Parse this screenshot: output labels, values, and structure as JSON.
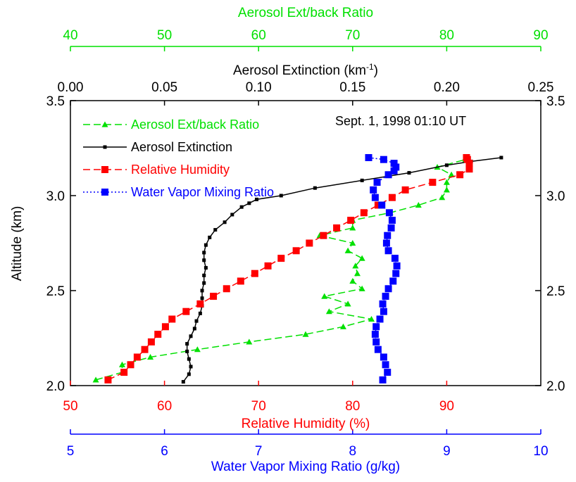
{
  "chart_data": {
    "type": "line",
    "annotation": "Sept. 1, 1998 01:10 UT",
    "y_axis": {
      "label": "Altitude (km)",
      "range": [
        2.0,
        3.5
      ],
      "ticks": [
        2.0,
        2.5,
        3.0,
        3.5
      ],
      "tick_labels": [
        "2.0",
        "2.5",
        "3.0",
        "3.5"
      ]
    },
    "x_axes": {
      "ext_back": {
        "label": "Aerosol Ext/back Ratio",
        "range": [
          40,
          90
        ],
        "ticks": [
          40,
          50,
          60,
          70,
          80,
          90
        ],
        "tick_labels": [
          "40",
          "50",
          "60",
          "70",
          "80",
          "90"
        ],
        "color": "#00e000"
      },
      "extinction": {
        "label_main": "Aerosol Extinction (km",
        "label_sup": "-1",
        "label_end": ")",
        "range": [
          0,
          0.25
        ],
        "ticks": [
          0,
          0.05,
          0.1,
          0.15,
          0.2,
          0.25
        ],
        "tick_labels": [
          "0.00",
          "0.05",
          "0.10",
          "0.15",
          "0.20",
          "0.25"
        ],
        "color": "#000000"
      },
      "humidity": {
        "label": "Relative Humidity (%)",
        "range": [
          50,
          100
        ],
        "ticks": [
          50,
          60,
          70,
          80,
          90
        ],
        "tick_labels": [
          "50",
          "60",
          "70",
          "80",
          "90"
        ],
        "color": "#ff0000"
      },
      "mixing": {
        "label": "Water Vapor Mixing Ratio (g/kg)",
        "range": [
          5,
          10
        ],
        "ticks": [
          5,
          6,
          7,
          8,
          9,
          10
        ],
        "tick_labels": [
          "5",
          "6",
          "7",
          "8",
          "9",
          "10"
        ],
        "color": "#0000ff"
      }
    },
    "series": [
      {
        "name": "Aerosol Ext/back Ratio",
        "axis": "ext_back",
        "color": "#00e000",
        "marker": "triangle",
        "dash": "10,5",
        "x": [
          42.7,
          45.5,
          45.5,
          48.5,
          53.5,
          59.0,
          65.0,
          69.0,
          72.0,
          67.5,
          69.5,
          67.0,
          71.0,
          70.0,
          70.5,
          70.3,
          71.0,
          69.5,
          70.0,
          66.5,
          70.0,
          70.0,
          74.0,
          77.0,
          79.5,
          80.0,
          80.0,
          80.5,
          79.0,
          82.0,
          82.0
        ],
        "y": [
          2.03,
          2.07,
          2.11,
          2.15,
          2.19,
          2.23,
          2.27,
          2.31,
          2.35,
          2.39,
          2.43,
          2.47,
          2.51,
          2.55,
          2.59,
          2.63,
          2.67,
          2.71,
          2.75,
          2.79,
          2.83,
          2.87,
          2.91,
          2.95,
          2.99,
          3.03,
          3.07,
          3.11,
          3.15,
          3.19,
          3.2
        ]
      },
      {
        "name": "Aerosol Extinction",
        "axis": "extinction",
        "color": "#000000",
        "marker": "square-small",
        "dash": "",
        "x": [
          0.06,
          0.063,
          0.064,
          0.063,
          0.062,
          0.062,
          0.064,
          0.066,
          0.067,
          0.069,
          0.07,
          0.07,
          0.07,
          0.071,
          0.071,
          0.072,
          0.071,
          0.071,
          0.072,
          0.074,
          0.077,
          0.082,
          0.086,
          0.091,
          0.095,
          0.099,
          0.112,
          0.13,
          0.155,
          0.18,
          0.2,
          0.213,
          0.229
        ],
        "y": [
          2.02,
          2.06,
          2.1,
          2.14,
          2.18,
          2.22,
          2.26,
          2.3,
          2.34,
          2.38,
          2.42,
          2.46,
          2.5,
          2.54,
          2.58,
          2.62,
          2.66,
          2.7,
          2.74,
          2.78,
          2.82,
          2.86,
          2.9,
          2.94,
          2.96,
          2.98,
          3.0,
          3.04,
          3.08,
          3.12,
          3.16,
          3.18,
          3.2
        ]
      },
      {
        "name": "Relative Humidity",
        "axis": "humidity",
        "color": "#ff0000",
        "marker": "square",
        "dash": "10,5",
        "x": [
          54.0,
          55.7,
          56.4,
          57.1,
          57.9,
          58.6,
          59.3,
          60.1,
          60.8,
          62.3,
          63.8,
          65.2,
          66.6,
          68.1,
          69.6,
          71.0,
          72.4,
          74.0,
          75.4,
          76.9,
          78.3,
          79.8,
          81.2,
          82.7,
          84.2,
          85.6,
          88.5,
          91.4,
          92.4,
          92.4,
          92.2,
          92.1
        ],
        "y": [
          2.03,
          2.07,
          2.11,
          2.15,
          2.19,
          2.23,
          2.27,
          2.31,
          2.35,
          2.39,
          2.43,
          2.47,
          2.51,
          2.55,
          2.59,
          2.63,
          2.67,
          2.71,
          2.75,
          2.79,
          2.83,
          2.87,
          2.91,
          2.95,
          2.99,
          3.03,
          3.07,
          3.11,
          3.14,
          3.17,
          3.19,
          3.2
        ]
      },
      {
        "name": "Water Vapor Mixing Ratio",
        "axis": "mixing",
        "color": "#0000ff",
        "marker": "square",
        "dash": "2,3",
        "x": [
          8.32,
          8.37,
          8.35,
          8.33,
          8.27,
          8.25,
          8.24,
          8.25,
          8.29,
          8.33,
          8.32,
          8.35,
          8.38,
          8.43,
          8.46,
          8.47,
          8.45,
          8.38,
          8.36,
          8.37,
          8.41,
          8.42,
          8.39,
          8.31,
          8.24,
          8.22,
          8.26,
          8.38,
          8.44,
          8.46,
          8.44,
          8.33,
          8.17
        ],
        "y": [
          2.03,
          2.07,
          2.11,
          2.15,
          2.19,
          2.23,
          2.27,
          2.31,
          2.35,
          2.39,
          2.43,
          2.47,
          2.51,
          2.55,
          2.59,
          2.63,
          2.67,
          2.71,
          2.75,
          2.79,
          2.83,
          2.87,
          2.91,
          2.95,
          2.99,
          3.03,
          3.07,
          3.11,
          3.13,
          3.15,
          3.17,
          3.19,
          3.2
        ]
      }
    ],
    "legend": [
      {
        "label": "Aerosol Ext/back Ratio",
        "color": "#00e000"
      },
      {
        "label": "Aerosol Extinction",
        "color": "#000000"
      },
      {
        "label": "Relative Humidity",
        "color": "#ff0000"
      },
      {
        "label": "Water Vapor Mixing Ratio",
        "color": "#0000ff"
      }
    ],
    "legend_position": "top-left"
  }
}
